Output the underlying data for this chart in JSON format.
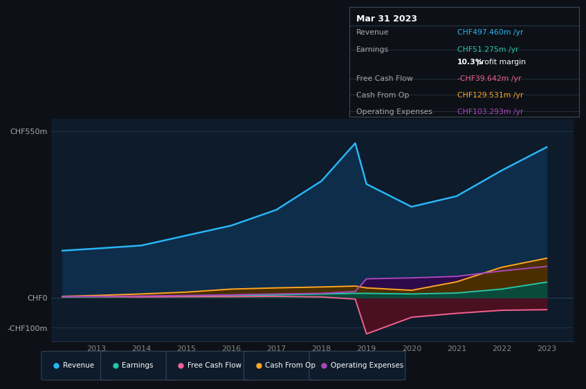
{
  "background_color": "#0d1117",
  "plot_bg_color": "#0d1b2a",
  "years": [
    2012.25,
    2013,
    2014,
    2015,
    2016,
    2017,
    2018,
    2018.75,
    2019,
    2020,
    2021,
    2022,
    2023
  ],
  "revenue": [
    155,
    162,
    172,
    205,
    238,
    290,
    385,
    510,
    375,
    300,
    335,
    420,
    497
  ],
  "earnings": [
    2,
    3,
    4,
    5,
    7,
    9,
    12,
    14,
    14,
    12,
    15,
    28,
    51
  ],
  "free_cash_flow": [
    3,
    3,
    2,
    3,
    3,
    4,
    2,
    -5,
    -120,
    -65,
    -52,
    -42,
    -40
  ],
  "cash_from_op": [
    4,
    7,
    12,
    18,
    28,
    32,
    35,
    38,
    32,
    24,
    52,
    100,
    130
  ],
  "operating_expenses": [
    3,
    4,
    5,
    7,
    9,
    12,
    14,
    20,
    62,
    65,
    70,
    88,
    103
  ],
  "revenue_color": "#29b6f6",
  "earnings_color": "#26c6a6",
  "fcf_color": "#f06292",
  "cash_from_op_color": "#ffa726",
  "op_exp_color": "#ab47bc",
  "revenue_fill": "#0d2d4a",
  "earnings_fill": "#0a4a3a",
  "fcf_fill_neg": "#4a1020",
  "cash_from_op_fill": "#4a2e00",
  "op_exp_fill": "#2e0a4a",
  "info_box": {
    "title": "Mar 31 2023",
    "rows": [
      {
        "label": "Revenue",
        "value": "CHF497.460m /yr",
        "value_color": "#29b6f6"
      },
      {
        "label": "Earnings",
        "value": "CHF51.275m /yr",
        "value_color": "#26c6a6"
      },
      {
        "label": "",
        "value": "10.3% profit margin",
        "value_color": "#ffffff",
        "bold_part": "10.3%"
      },
      {
        "label": "Free Cash Flow",
        "value": "-CHF39.642m /yr",
        "value_color": "#f06292"
      },
      {
        "label": "Cash From Op",
        "value": "CHF129.531m /yr",
        "value_color": "#ffa726"
      },
      {
        "label": "Operating Expenses",
        "value": "CHF103.293m /yr",
        "value_color": "#ab47bc"
      }
    ]
  },
  "legend": [
    {
      "label": "Revenue",
      "color": "#29b6f6"
    },
    {
      "label": "Earnings",
      "color": "#26c6a6"
    },
    {
      "label": "Free Cash Flow",
      "color": "#f06292"
    },
    {
      "label": "Cash From Op",
      "color": "#ffa726"
    },
    {
      "label": "Operating Expenses",
      "color": "#ab47bc"
    }
  ],
  "xlim": [
    2012.0,
    2023.6
  ],
  "ylim": [
    -145,
    590
  ],
  "xticks": [
    2013,
    2014,
    2015,
    2016,
    2017,
    2018,
    2019,
    2020,
    2021,
    2022,
    2023
  ],
  "ytick_vals": [
    -100,
    0,
    550
  ],
  "ytick_labels": [
    "-CHF100m",
    "CHF0",
    "CHF550m"
  ]
}
